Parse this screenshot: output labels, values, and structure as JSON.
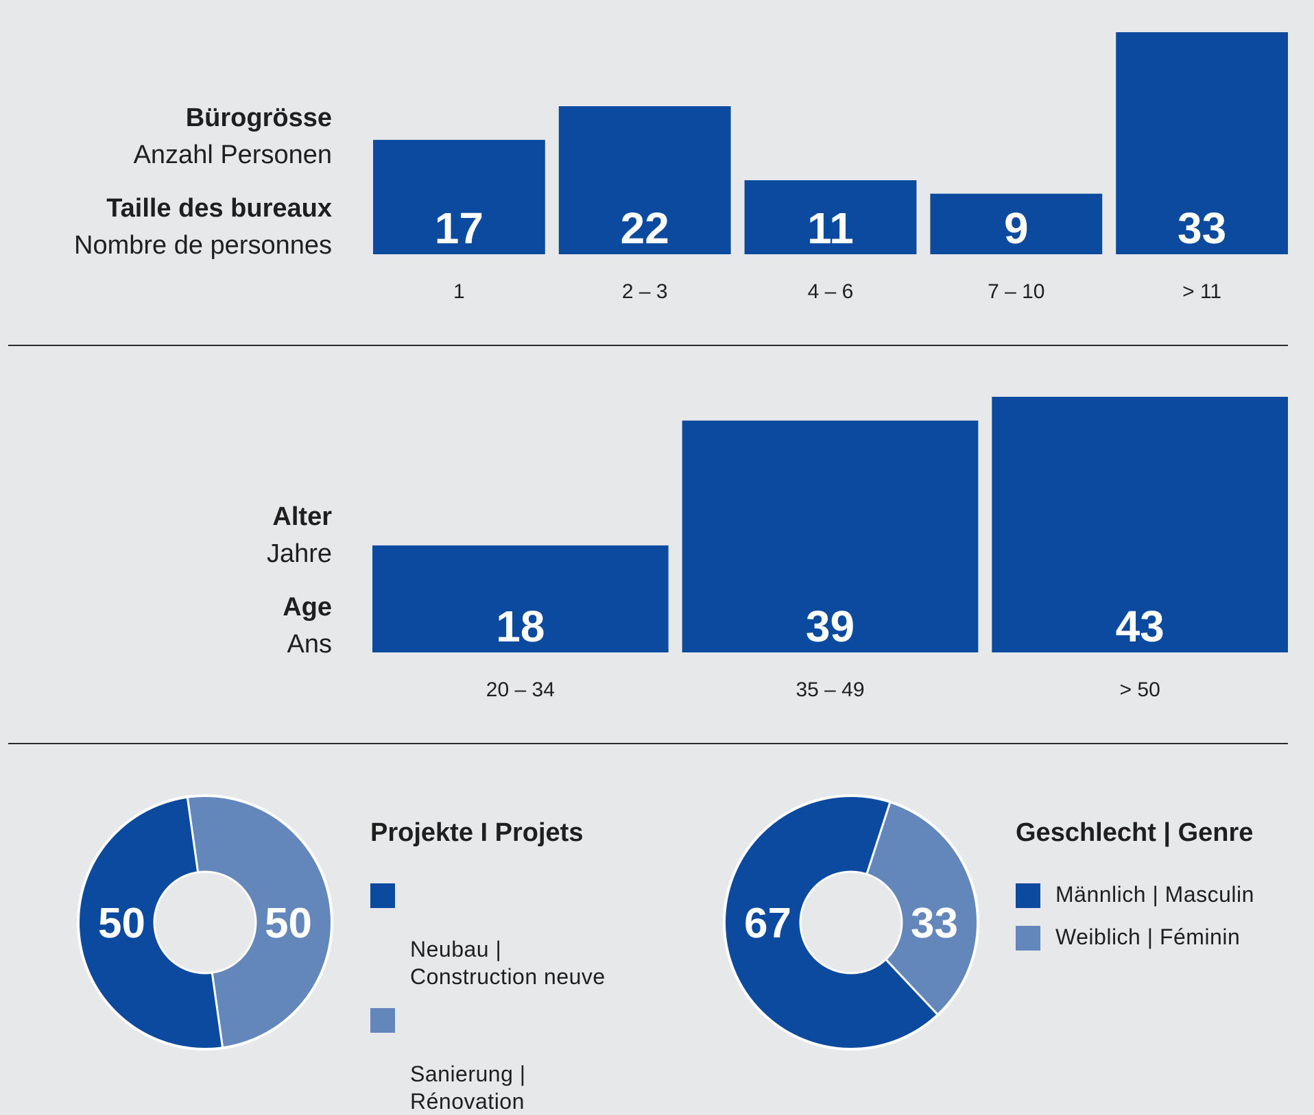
{
  "colors": {
    "dark": "#0b4a9e",
    "light": "#6386bb",
    "background": "#e7e8ea",
    "text": "#1f1f1f"
  },
  "office_size": {
    "title_de": "Bürogrösse",
    "subtitle_de": "Anzahl Personen",
    "title_fr": "Taille des bureaux",
    "subtitle_fr": "Nombre de personnes"
  },
  "age": {
    "title_de": "Alter",
    "subtitle_de": "Jahre",
    "title_fr": "Age",
    "subtitle_fr": "Ans"
  },
  "projects": {
    "title": "Projekte I Projets",
    "legend": [
      "Neubau |\nConstruction neuve",
      "Sanierung |\nRénovation"
    ]
  },
  "gender": {
    "title": "Geschlecht | Genre",
    "legend": [
      "Männlich | Masculin",
      "Weiblich | Féminin"
    ]
  },
  "chart_data": [
    {
      "type": "bar",
      "title": "Bürogrösse / Taille des bureaux",
      "xlabel": "Anzahl Personen / Nombre de personnes",
      "categories": [
        "1",
        "2 – 3",
        "4 – 6",
        "7 – 10",
        "> 11"
      ],
      "values": [
        17,
        22,
        11,
        9,
        33
      ],
      "ylim": [
        0,
        33
      ]
    },
    {
      "type": "bar",
      "title": "Alter / Age",
      "xlabel": "Jahre / Ans",
      "categories": [
        "20 – 34",
        "35 – 49",
        "> 50"
      ],
      "values": [
        18,
        39,
        43
      ],
      "ylim": [
        0,
        43
      ]
    },
    {
      "type": "pie",
      "title": "Projekte I Projets",
      "categories": [
        "Neubau | Construction neuve",
        "Sanierung | Rénovation"
      ],
      "values": [
        50,
        50
      ]
    },
    {
      "type": "pie",
      "title": "Geschlecht | Genre",
      "categories": [
        "Männlich | Masculin",
        "Weiblich | Féminin"
      ],
      "values": [
        67,
        33
      ]
    }
  ]
}
